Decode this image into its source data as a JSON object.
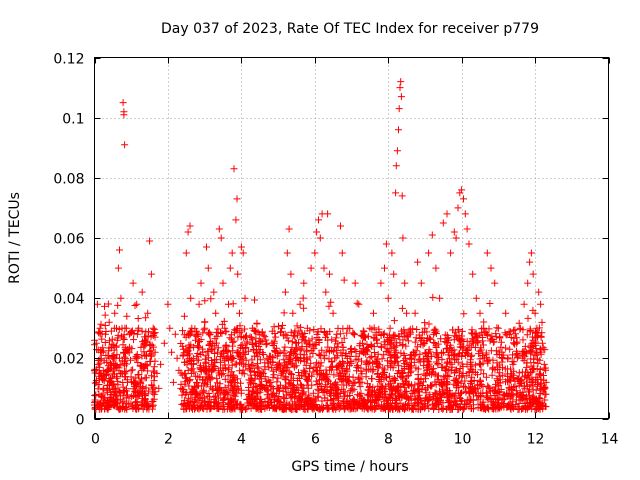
{
  "chart_data": {
    "type": "scatter",
    "title": "Day 037 of 2023, Rate Of TEC Index for receiver p779",
    "xlabel": "GPS time / hours",
    "ylabel": "ROTI / TECUs",
    "xlim": [
      0,
      14
    ],
    "ylim": [
      0,
      0.12
    ],
    "x_ticks": [
      0,
      2,
      4,
      6,
      8,
      10,
      12,
      14
    ],
    "y_ticks": [
      0,
      0.02,
      0.04,
      0.06,
      0.08,
      0.1,
      0.12
    ],
    "x_tick_labels": [
      "0",
      "2",
      "4",
      "6",
      "8",
      "10",
      "12",
      "14"
    ],
    "y_tick_labels": [
      "0",
      "0.02",
      "0.04",
      "0.06",
      "0.08",
      "0.1",
      "0.12"
    ],
    "grid": true,
    "marker": "+",
    "series": [
      {
        "name": "ROTI",
        "color": "#ff0000",
        "points": [
          [
            0.05,
            0.012
          ],
          [
            0.05,
            0.025
          ],
          [
            0.08,
            0.038
          ],
          [
            0.1,
            0.018
          ],
          [
            0.12,
            0.008
          ],
          [
            0.15,
            0.03
          ],
          [
            0.18,
            0.015
          ],
          [
            0.2,
            0.022
          ],
          [
            0.25,
            0.01
          ],
          [
            0.3,
            0.028
          ],
          [
            0.35,
            0.016
          ],
          [
            0.4,
            0.032
          ],
          [
            0.45,
            0.012
          ],
          [
            0.5,
            0.02
          ],
          [
            0.55,
            0.035
          ],
          [
            0.6,
            0.014
          ],
          [
            0.62,
            0.026
          ],
          [
            0.65,
            0.05
          ],
          [
            0.68,
            0.056
          ],
          [
            0.7,
            0.018
          ],
          [
            0.72,
            0.04
          ],
          [
            0.75,
            0.03
          ],
          [
            0.78,
            0.105
          ],
          [
            0.8,
            0.102
          ],
          [
            0.8,
            0.101
          ],
          [
            0.82,
            0.091
          ],
          [
            0.85,
            0.022
          ],
          [
            0.88,
            0.034
          ],
          [
            0.9,
            0.012
          ],
          [
            0.95,
            0.028
          ],
          [
            1.0,
            0.016
          ],
          [
            1.05,
            0.045
          ],
          [
            1.1,
            0.02
          ],
          [
            1.15,
            0.038
          ],
          [
            1.2,
            0.03
          ],
          [
            1.25,
            0.012
          ],
          [
            1.3,
            0.042
          ],
          [
            1.35,
            0.025
          ],
          [
            1.4,
            0.018
          ],
          [
            1.45,
            0.035
          ],
          [
            1.5,
            0.059
          ],
          [
            1.55,
            0.048
          ],
          [
            1.6,
            0.03
          ],
          [
            1.65,
            0.022
          ],
          [
            1.7,
            0.015
          ],
          [
            1.75,
            0.01
          ],
          [
            1.8,
            0.018
          ],
          [
            1.9,
            0.025
          ],
          [
            2.0,
            0.038
          ],
          [
            2.05,
            0.03
          ],
          [
            2.1,
            0.022
          ],
          [
            2.15,
            0.012
          ],
          [
            2.2,
            0.028
          ],
          [
            2.25,
            0.02
          ],
          [
            2.3,
            0.016
          ],
          [
            2.35,
            0.01
          ],
          [
            2.4,
            0.024
          ],
          [
            2.45,
            0.034
          ],
          [
            2.5,
            0.055
          ],
          [
            2.55,
            0.062
          ],
          [
            2.6,
            0.064
          ],
          [
            2.62,
            0.04
          ],
          [
            2.65,
            0.03
          ],
          [
            2.7,
            0.018
          ],
          [
            2.75,
            0.026
          ],
          [
            2.8,
            0.012
          ],
          [
            2.85,
            0.038
          ],
          [
            2.9,
            0.045
          ],
          [
            2.95,
            0.022
          ],
          [
            3.0,
            0.032
          ],
          [
            3.05,
            0.057
          ],
          [
            3.1,
            0.05
          ],
          [
            3.15,
            0.028
          ],
          [
            3.2,
            0.018
          ],
          [
            3.25,
            0.042
          ],
          [
            3.3,
            0.035
          ],
          [
            3.35,
            0.022
          ],
          [
            3.4,
            0.063
          ],
          [
            3.45,
            0.06
          ],
          [
            3.5,
            0.045
          ],
          [
            3.55,
            0.03
          ],
          [
            3.6,
            0.02
          ],
          [
            3.65,
            0.038
          ],
          [
            3.7,
            0.05
          ],
          [
            3.75,
            0.055
          ],
          [
            3.8,
            0.083
          ],
          [
            3.85,
            0.066
          ],
          [
            3.88,
            0.073
          ],
          [
            3.9,
            0.048
          ],
          [
            3.95,
            0.035
          ],
          [
            4.0,
            0.057
          ],
          [
            4.05,
            0.055
          ],
          [
            4.1,
            0.04
          ],
          [
            4.15,
            0.025
          ],
          [
            4.2,
            0.018
          ],
          [
            4.3,
            0.03
          ],
          [
            4.4,
            0.022
          ],
          [
            4.5,
            0.028
          ],
          [
            4.6,
            0.015
          ],
          [
            4.7,
            0.02
          ],
          [
            4.8,
            0.012
          ],
          [
            4.9,
            0.025
          ],
          [
            5.0,
            0.018
          ],
          [
            5.1,
            0.03
          ],
          [
            5.2,
            0.042
          ],
          [
            5.25,
            0.055
          ],
          [
            5.3,
            0.063
          ],
          [
            5.35,
            0.048
          ],
          [
            5.4,
            0.035
          ],
          [
            5.5,
            0.025
          ],
          [
            5.6,
            0.038
          ],
          [
            5.7,
            0.045
          ],
          [
            5.8,
            0.03
          ],
          [
            5.9,
            0.05
          ],
          [
            6.0,
            0.055
          ],
          [
            6.05,
            0.062
          ],
          [
            6.1,
            0.066
          ],
          [
            6.15,
            0.06
          ],
          [
            6.2,
            0.068
          ],
          [
            6.25,
            0.05
          ],
          [
            6.3,
            0.042
          ],
          [
            6.35,
            0.068
          ],
          [
            6.4,
            0.048
          ],
          [
            6.5,
            0.035
          ],
          [
            6.6,
            0.028
          ],
          [
            6.7,
            0.064
          ],
          [
            6.75,
            0.055
          ],
          [
            6.8,
            0.046
          ],
          [
            6.9,
            0.03
          ],
          [
            7.0,
            0.022
          ],
          [
            7.1,
            0.045
          ],
          [
            7.2,
            0.038
          ],
          [
            7.3,
            0.025
          ],
          [
            7.4,
            0.018
          ],
          [
            7.5,
            0.03
          ],
          [
            7.6,
            0.035
          ],
          [
            7.7,
            0.025
          ],
          [
            7.8,
            0.045
          ],
          [
            7.9,
            0.05
          ],
          [
            7.95,
            0.058
          ],
          [
            8.0,
            0.04
          ],
          [
            8.05,
            0.03
          ],
          [
            8.1,
            0.055
          ],
          [
            8.15,
            0.048
          ],
          [
            8.2,
            0.075
          ],
          [
            8.22,
            0.084
          ],
          [
            8.25,
            0.089
          ],
          [
            8.28,
            0.096
          ],
          [
            8.3,
            0.103
          ],
          [
            8.32,
            0.11
          ],
          [
            8.34,
            0.112
          ],
          [
            8.36,
            0.107
          ],
          [
            8.38,
            0.074
          ],
          [
            8.4,
            0.06
          ],
          [
            8.45,
            0.045
          ],
          [
            8.5,
            0.035
          ],
          [
            8.6,
            0.028
          ],
          [
            8.7,
            0.022
          ],
          [
            8.8,
            0.052
          ],
          [
            8.9,
            0.045
          ],
          [
            9.0,
            0.03
          ],
          [
            9.1,
            0.055
          ],
          [
            9.2,
            0.061
          ],
          [
            9.3,
            0.05
          ],
          [
            9.4,
            0.04
          ],
          [
            9.5,
            0.065
          ],
          [
            9.6,
            0.068
          ],
          [
            9.7,
            0.055
          ],
          [
            9.8,
            0.062
          ],
          [
            9.85,
            0.06
          ],
          [
            9.9,
            0.07
          ],
          [
            9.95,
            0.075
          ],
          [
            10.0,
            0.076
          ],
          [
            10.05,
            0.073
          ],
          [
            10.1,
            0.068
          ],
          [
            10.15,
            0.063
          ],
          [
            10.2,
            0.058
          ],
          [
            10.3,
            0.048
          ],
          [
            10.4,
            0.04
          ],
          [
            10.5,
            0.035
          ],
          [
            10.6,
            0.03
          ],
          [
            10.7,
            0.055
          ],
          [
            10.8,
            0.05
          ],
          [
            10.9,
            0.045
          ],
          [
            11.0,
            0.03
          ],
          [
            11.1,
            0.022
          ],
          [
            11.2,
            0.035
          ],
          [
            11.3,
            0.028
          ],
          [
            11.4,
            0.018
          ],
          [
            11.5,
            0.025
          ],
          [
            11.6,
            0.03
          ],
          [
            11.7,
            0.038
          ],
          [
            11.8,
            0.045
          ],
          [
            11.85,
            0.052
          ],
          [
            11.9,
            0.055
          ],
          [
            11.95,
            0.048
          ],
          [
            12.0,
            0.035
          ],
          [
            12.05,
            0.03
          ],
          [
            12.1,
            0.042
          ],
          [
            12.15,
            0.038
          ],
          [
            12.2,
            0.025
          ],
          [
            12.25,
            0.018
          ],
          [
            12.3,
            0.012
          ]
        ]
      }
    ],
    "dense_band": {
      "description": "dense cluster of ROTI points between 0.003 and about 0.03 TECUs",
      "x_ranges": [
        [
          0,
          1.65
        ],
        [
          2.35,
          12.3
        ]
      ],
      "gap_x_range": [
        1.65,
        2.35
      ],
      "y_min": 0.003,
      "y_max": 0.03
    }
  }
}
